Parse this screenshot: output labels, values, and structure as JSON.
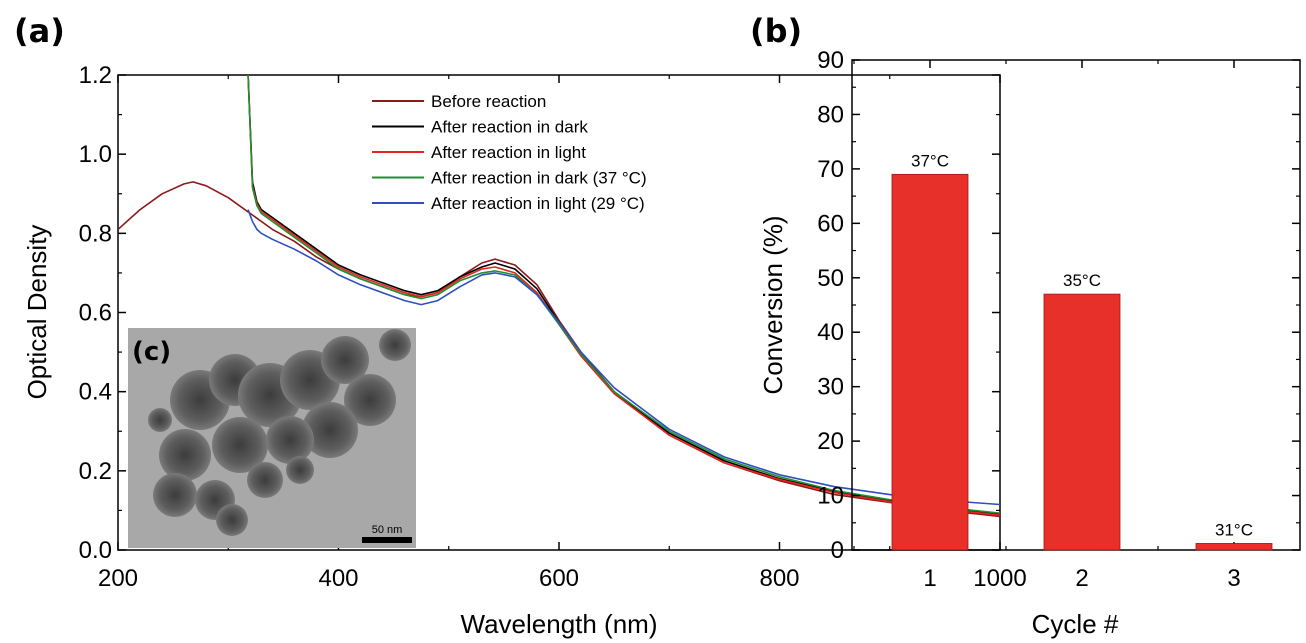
{
  "panels": {
    "a_label": "(a)",
    "b_label": "(b)",
    "c_label": "(c)"
  },
  "inset": {
    "scale_bar_text": "50 nm"
  },
  "chart_data": [
    {
      "panel": "(a)",
      "type": "line",
      "xlabel": "Wavelength (nm)",
      "ylabel": "Optical Density",
      "xlim": [
        200,
        1000
      ],
      "ylim": [
        0.0,
        1.2
      ],
      "xticks": [
        "200",
        "400",
        "600",
        "800",
        "1000"
      ],
      "yticks": [
        "0.0",
        "0.2",
        "0.4",
        "0.6",
        "0.8",
        "1.0",
        "1.2"
      ],
      "legend_position": "top-right",
      "series": [
        {
          "name": "Before reaction",
          "color": "#8b1a1a",
          "x": [
            200,
            220,
            240,
            260,
            268,
            280,
            300,
            320,
            340,
            360,
            380,
            400,
            420,
            440,
            460,
            475,
            490,
            510,
            530,
            542,
            560,
            580,
            600,
            620,
            650,
            700,
            750,
            800,
            850,
            900,
            950,
            1000
          ],
          "y": [
            0.81,
            0.86,
            0.9,
            0.925,
            0.93,
            0.92,
            0.89,
            0.85,
            0.81,
            0.78,
            0.74,
            0.71,
            0.685,
            0.665,
            0.645,
            0.64,
            0.65,
            0.69,
            0.725,
            0.735,
            0.72,
            0.67,
            0.58,
            0.5,
            0.4,
            0.29,
            0.22,
            0.175,
            0.14,
            0.12,
            0.1,
            0.085
          ]
        },
        {
          "name": "After reaction in dark",
          "color": "#000000",
          "x": [
            318,
            322,
            326,
            330,
            340,
            360,
            380,
            400,
            420,
            440,
            460,
            475,
            490,
            510,
            530,
            542,
            560,
            580,
            600,
            620,
            650,
            700,
            750,
            800,
            850,
            900,
            950,
            1000
          ],
          "y": [
            1.2,
            0.93,
            0.88,
            0.86,
            0.84,
            0.8,
            0.76,
            0.72,
            0.695,
            0.675,
            0.655,
            0.645,
            0.655,
            0.69,
            0.715,
            0.725,
            0.71,
            0.66,
            0.575,
            0.495,
            0.4,
            0.295,
            0.225,
            0.18,
            0.148,
            0.125,
            0.105,
            0.09
          ]
        },
        {
          "name": "After reaction in light",
          "color": "#e8231f",
          "x": [
            318,
            322,
            326,
            330,
            340,
            360,
            380,
            400,
            420,
            440,
            460,
            475,
            490,
            510,
            530,
            542,
            560,
            580,
            600,
            620,
            650,
            700,
            750,
            800,
            850,
            900,
            950,
            1000
          ],
          "y": [
            1.2,
            0.92,
            0.875,
            0.855,
            0.835,
            0.795,
            0.755,
            0.715,
            0.69,
            0.67,
            0.65,
            0.64,
            0.65,
            0.685,
            0.71,
            0.715,
            0.7,
            0.65,
            0.57,
            0.49,
            0.395,
            0.29,
            0.22,
            0.178,
            0.145,
            0.122,
            0.103,
            0.088
          ]
        },
        {
          "name": "After reaction in dark (37 °C)",
          "color": "#1f8f2f",
          "x": [
            318,
            322,
            326,
            330,
            340,
            360,
            380,
            400,
            420,
            440,
            460,
            475,
            490,
            510,
            530,
            542,
            560,
            580,
            600,
            620,
            650,
            700,
            750,
            800,
            850,
            900,
            950,
            1000
          ],
          "y": [
            1.2,
            0.915,
            0.87,
            0.85,
            0.83,
            0.79,
            0.75,
            0.71,
            0.685,
            0.665,
            0.645,
            0.635,
            0.645,
            0.68,
            0.7,
            0.705,
            0.695,
            0.645,
            0.57,
            0.495,
            0.4,
            0.3,
            0.23,
            0.185,
            0.15,
            0.127,
            0.108,
            0.093
          ]
        },
        {
          "name": "After reaction in light (29 °C)",
          "color": "#2f4fbf",
          "x": [
            318,
            322,
            326,
            330,
            340,
            360,
            380,
            400,
            420,
            440,
            460,
            475,
            490,
            510,
            530,
            542,
            560,
            580,
            600,
            620,
            650,
            700,
            750,
            800,
            850,
            900,
            950,
            1000
          ],
          "y": [
            0.86,
            0.83,
            0.81,
            0.8,
            0.785,
            0.76,
            0.73,
            0.695,
            0.67,
            0.65,
            0.63,
            0.62,
            0.63,
            0.665,
            0.695,
            0.7,
            0.69,
            0.645,
            0.575,
            0.5,
            0.41,
            0.305,
            0.235,
            0.19,
            0.16,
            0.14,
            0.125,
            0.115
          ]
        }
      ]
    },
    {
      "panel": "(b)",
      "type": "bar",
      "xlabel": "Cycle #",
      "ylabel": "Conversion (%)",
      "ylim": [
        0,
        90
      ],
      "yticks": [
        "0",
        "10",
        "20",
        "30",
        "40",
        "50",
        "60",
        "70",
        "80",
        "90"
      ],
      "categories": [
        "1",
        "2",
        "3"
      ],
      "values": [
        69,
        47,
        1.2
      ],
      "bar_color": "#e8302a",
      "data_labels": [
        "37°C",
        "35°C",
        "31°C"
      ]
    }
  ]
}
